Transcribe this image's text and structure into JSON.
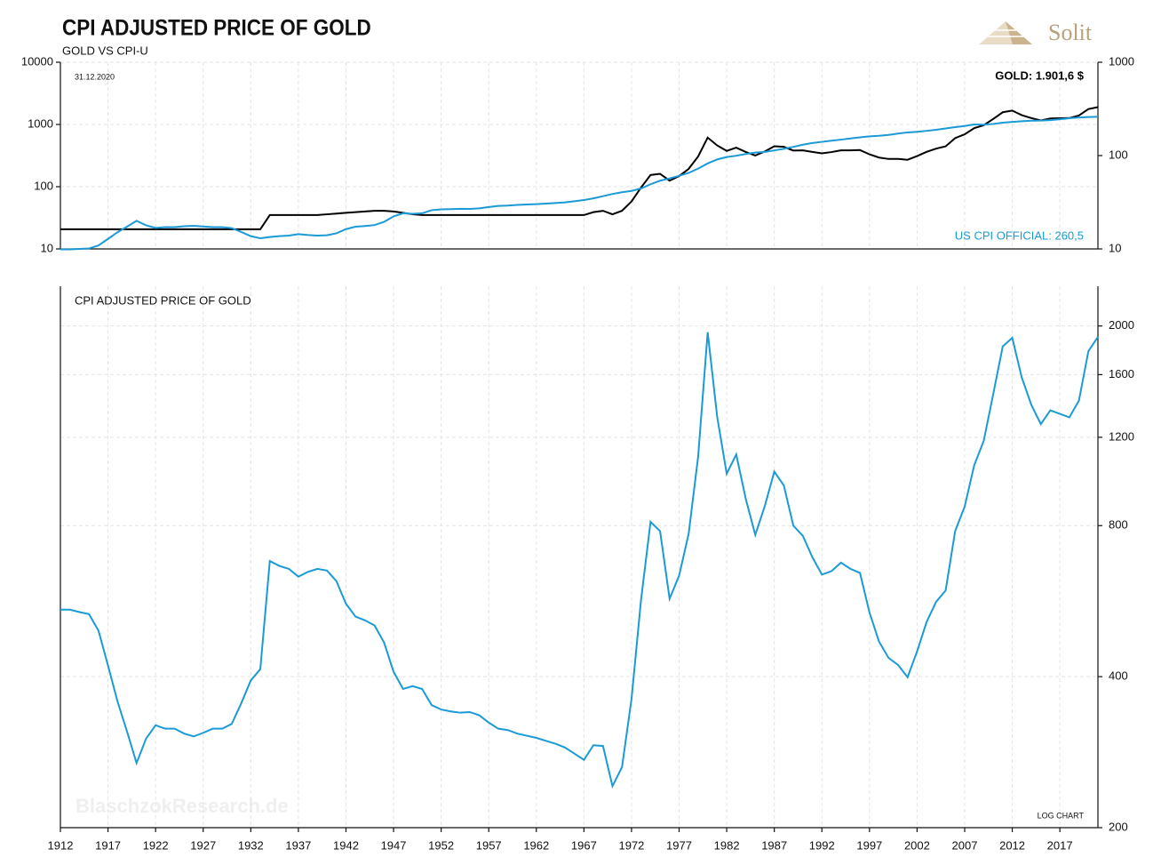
{
  "logo": "Solit",
  "watermark": "BlaschzokResearch.de",
  "chart_data": [
    {
      "type": "line",
      "title": "CPI ADJUSTED PRICE OF GOLD",
      "subtitle": "GOLD VS CPI-U",
      "date": "31.12.2020",
      "gold_label": "GOLD: 1.901,6 $",
      "cpi_label": "US CPI OFFICIAL: 260,5",
      "log_scale": true,
      "grid": true,
      "xlim": [
        1912,
        2021
      ],
      "x": [
        1912,
        1913,
        1914,
        1915,
        1916,
        1917,
        1918,
        1919,
        1920,
        1921,
        1922,
        1923,
        1924,
        1925,
        1926,
        1927,
        1928,
        1929,
        1930,
        1931,
        1932,
        1933,
        1934,
        1935,
        1936,
        1937,
        1938,
        1939,
        1940,
        1941,
        1942,
        1943,
        1944,
        1945,
        1946,
        1947,
        1948,
        1949,
        1950,
        1951,
        1952,
        1953,
        1954,
        1955,
        1956,
        1957,
        1958,
        1959,
        1960,
        1961,
        1962,
        1963,
        1964,
        1965,
        1966,
        1967,
        1968,
        1969,
        1970,
        1971,
        1972,
        1973,
        1974,
        1975,
        1976,
        1977,
        1978,
        1979,
        1980,
        1981,
        1982,
        1983,
        1984,
        1985,
        1986,
        1987,
        1988,
        1989,
        1990,
        1991,
        1992,
        1993,
        1994,
        1995,
        1996,
        1997,
        1998,
        1999,
        2000,
        2001,
        2002,
        2003,
        2004,
        2005,
        2006,
        2007,
        2008,
        2009,
        2010,
        2011,
        2012,
        2013,
        2014,
        2015,
        2016,
        2017,
        2018,
        2019,
        2020,
        2021
      ],
      "ylim": [
        10,
        10000
      ],
      "yticks": [
        10,
        100,
        1000,
        10000
      ],
      "y2lim": [
        10,
        1000
      ],
      "y2ticks": [
        10,
        100,
        1000
      ],
      "series": [
        {
          "color": "#000000",
          "axis": "y",
          "values": [
            20.67,
            20.67,
            20.67,
            20.67,
            20.67,
            20.67,
            20.67,
            20.67,
            20.67,
            20.67,
            20.67,
            20.67,
            20.67,
            20.67,
            20.67,
            20.67,
            20.67,
            20.67,
            20.67,
            20.67,
            20.67,
            20.67,
            35,
            35,
            35,
            35,
            35,
            35,
            36,
            37,
            38,
            39,
            40,
            41,
            41,
            40,
            38,
            36,
            35,
            35,
            35,
            35,
            35,
            35,
            35,
            35,
            35,
            35,
            35,
            35,
            35,
            35,
            35,
            35,
            35,
            35,
            39,
            41,
            36,
            41,
            58,
            97,
            154,
            161,
            125,
            148,
            193,
            306,
            615,
            460,
            376,
            424,
            361,
            317,
            368,
            447,
            437,
            381,
            383,
            362,
            344,
            360,
            384,
            384,
            388,
            331,
            294,
            279,
            279,
            271,
            310,
            363,
            409,
            445,
            604,
            695,
            872,
            972,
            1225,
            1572,
            1669,
            1411,
            1266,
            1160,
            1251,
            1257,
            1268,
            1393,
            1770,
            1901.6
          ]
        },
        {
          "color": "#1a9ad6",
          "axis": "y2",
          "values": [
            9.9,
            9.9,
            10,
            10.1,
            10.9,
            12.8,
            15.1,
            17.3,
            20,
            17.9,
            16.8,
            17.1,
            17.1,
            17.5,
            17.7,
            17.4,
            17.1,
            17.1,
            16.7,
            15.2,
            13.7,
            13,
            13.4,
            13.7,
            13.9,
            14.4,
            14.1,
            13.9,
            14,
            14.7,
            16.3,
            17.3,
            17.6,
            18,
            19.5,
            22.3,
            24.1,
            23.8,
            24.1,
            26,
            26.5,
            26.7,
            26.9,
            26.8,
            27.2,
            28.1,
            28.9,
            29.1,
            29.6,
            29.9,
            30.2,
            30.6,
            31,
            31.5,
            32.4,
            33.4,
            34.8,
            36.7,
            38.8,
            40.5,
            41.8,
            44.4,
            49.3,
            53.8,
            56.9,
            60.6,
            65.2,
            72.6,
            82.4,
            90.9,
            96.5,
            99.6,
            103.9,
            107.6,
            109.6,
            113.6,
            118.3,
            124,
            130.7,
            136.2,
            140.3,
            144.5,
            148.2,
            152.4,
            156.9,
            160.5,
            163,
            166.6,
            172.2,
            177.1,
            179.9,
            184,
            188.9,
            195.3,
            201.6,
            207.3,
            215.3,
            214.5,
            218.1,
            224.9,
            229.6,
            233,
            236.7,
            237,
            240,
            245.1,
            251.1,
            255.7,
            258.8,
            260.5
          ]
        }
      ]
    },
    {
      "type": "line",
      "title": "CPI ADJUSTED PRICE OF GOLD",
      "note": "LOG CHART",
      "log_scale": true,
      "grid": true,
      "yaxis_position": "right",
      "xlim": [
        1912,
        2021
      ],
      "xticks": [
        1912,
        1917,
        1922,
        1927,
        1932,
        1937,
        1942,
        1947,
        1952,
        1957,
        1962,
        1967,
        1972,
        1977,
        1982,
        1987,
        1992,
        1997,
        2002,
        2007,
        2012,
        2017
      ],
      "x": [
        1912,
        1913,
        1914,
        1915,
        1916,
        1917,
        1918,
        1919,
        1920,
        1921,
        1922,
        1923,
        1924,
        1925,
        1926,
        1927,
        1928,
        1929,
        1930,
        1931,
        1932,
        1933,
        1934,
        1935,
        1936,
        1937,
        1938,
        1939,
        1940,
        1941,
        1942,
        1943,
        1944,
        1945,
        1946,
        1947,
        1948,
        1949,
        1950,
        1951,
        1952,
        1953,
        1954,
        1955,
        1956,
        1957,
        1958,
        1959,
        1960,
        1961,
        1962,
        1963,
        1964,
        1965,
        1966,
        1967,
        1968,
        1969,
        1970,
        1971,
        1972,
        1973,
        1974,
        1975,
        1976,
        1977,
        1978,
        1979,
        1980,
        1981,
        1982,
        1983,
        1984,
        1985,
        1986,
        1987,
        1988,
        1989,
        1990,
        1991,
        1992,
        1993,
        1994,
        1995,
        1996,
        1997,
        1998,
        1999,
        2000,
        2001,
        2002,
        2003,
        2004,
        2005,
        2006,
        2007,
        2008,
        2009,
        2010,
        2011,
        2012,
        2013,
        2014,
        2015,
        2016,
        2017,
        2018,
        2019,
        2020,
        2021
      ],
      "ylim": [
        200,
        2400
      ],
      "yticks": [
        200,
        400,
        800,
        1200,
        1600,
        2000
      ],
      "series": [
        {
          "color": "#1a9ad6",
          "values": [
            544,
            544,
            538,
            533,
            494,
            421,
            357,
            311,
            269,
            301,
            320,
            315,
            315,
            308,
            304,
            309,
            315,
            315,
            322,
            354,
            393,
            414,
            680,
            665,
            656,
            633,
            647,
            656,
            651,
            620,
            559,
            527,
            518,
            506,
            468,
            409,
            378,
            383,
            378,
            351,
            344,
            341,
            339,
            340,
            335,
            324,
            315,
            313,
            308,
            305,
            302,
            298,
            294,
            289,
            281,
            273,
            292,
            291,
            242,
            264,
            361,
            569,
            814,
            780,
            572,
            636,
            770,
            1098,
            1944,
            1318,
            1015,
            1109,
            905,
            767,
            875,
            1025,
            962,
            800,
            763,
            692,
            639,
            649,
            675,
            656,
            644,
            537,
            470,
            436,
            422,
            399,
            449,
            514,
            564,
            594,
            780,
            873,
            1055,
            1180,
            1463,
            1821,
            1894,
            1578,
            1393,
            1275,
            1358,
            1336,
            1315,
            1419,
            1782,
            1902
          ]
        }
      ]
    }
  ]
}
